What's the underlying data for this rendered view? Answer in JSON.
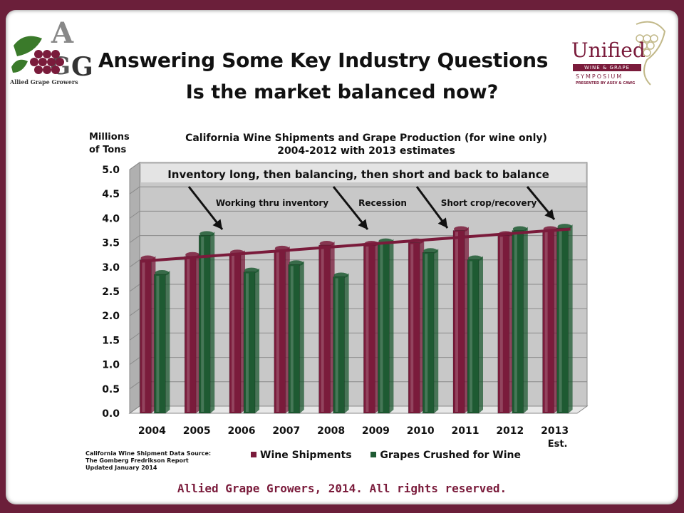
{
  "header": {
    "title": "Answering Some Key Industry Questions",
    "subtitle": "Is the market balanced now?"
  },
  "logos": {
    "left_brand": "Allied Grape Growers",
    "right_brand": "Unified",
    "right_band": "WINE & GRAPE",
    "right_symposium": "SYMPOSIUM",
    "right_presented": "PRESENTED BY ASEV & CAWG"
  },
  "chart_data": {
    "type": "bar",
    "title": "California Wine Shipments and Grape Production (for wine only)",
    "subtitle": "2004-2012 with 2013 estimates",
    "ylabel": [
      "Millions",
      "of Tons"
    ],
    "ylim": [
      0,
      5
    ],
    "yticks": [
      "0.0",
      "0.5",
      "1.0",
      "1.5",
      "2.0",
      "2.5",
      "3.0",
      "3.5",
      "4.0",
      "4.5",
      "5.0"
    ],
    "categories": [
      "2004",
      "2005",
      "2006",
      "2007",
      "2008",
      "2009",
      "2010",
      "2011",
      "2012",
      "2013"
    ],
    "category_sublabel": {
      "2013": "Est."
    },
    "series": [
      {
        "name": "Wine Shipments",
        "color": "#7a1b3b",
        "values": [
          3.15,
          3.22,
          3.27,
          3.35,
          3.45,
          3.45,
          3.5,
          3.75,
          3.65,
          3.75
        ]
      },
      {
        "name": "Grapes Crushed for Wine",
        "color": "#1e5a32",
        "values": [
          2.85,
          3.65,
          2.9,
          3.05,
          2.8,
          3.5,
          3.3,
          3.15,
          3.75,
          3.8
        ]
      }
    ],
    "trendline": {
      "from": [
        0,
        3.12
      ],
      "to": [
        9,
        3.78
      ],
      "color": "#7a1b3b"
    },
    "annotations": {
      "banner": "Inventory long, then balancing, then short and back to balance",
      "phases": [
        "Working thru inventory",
        "Recession",
        "Short crop/recovery"
      ]
    },
    "grid": true,
    "legend_position": "bottom"
  },
  "source_note": {
    "lines": [
      "California Wine Shipment Data Source:",
      "The Gomberg Fredrikson Report",
      "Updated January 2014"
    ]
  },
  "footer": "Allied Grape Growers, 2014.  All rights reserved."
}
